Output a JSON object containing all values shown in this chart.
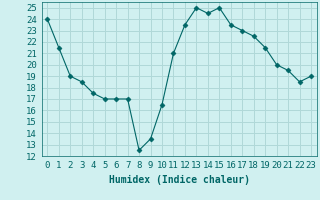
{
  "x": [
    0,
    1,
    2,
    3,
    4,
    5,
    6,
    7,
    8,
    9,
    10,
    11,
    12,
    13,
    14,
    15,
    16,
    17,
    18,
    19,
    20,
    21,
    22,
    23
  ],
  "y": [
    24,
    21.5,
    19,
    18.5,
    17.5,
    17,
    17,
    17,
    12.5,
    13.5,
    16.5,
    21,
    23.5,
    25,
    24.5,
    25,
    23.5,
    23,
    22.5,
    21.5,
    20,
    19.5,
    18.5,
    19
  ],
  "line_color": "#006666",
  "marker": "D",
  "marker_size": 2.5,
  "bg_color": "#d0f0f0",
  "grid_color": "#b0d8d8",
  "xlabel": "Humidex (Indice chaleur)",
  "ylim": [
    12,
    25.5
  ],
  "xlim": [
    -0.5,
    23.5
  ],
  "yticks": [
    12,
    13,
    14,
    15,
    16,
    17,
    18,
    19,
    20,
    21,
    22,
    23,
    24,
    25
  ],
  "xticks": [
    0,
    1,
    2,
    3,
    4,
    5,
    6,
    7,
    8,
    9,
    10,
    11,
    12,
    13,
    14,
    15,
    16,
    17,
    18,
    19,
    20,
    21,
    22,
    23
  ],
  "xtick_labels": [
    "0",
    "1",
    "2",
    "3",
    "4",
    "5",
    "6",
    "7",
    "8",
    "9",
    "10",
    "11",
    "12",
    "13",
    "14",
    "15",
    "16",
    "17",
    "18",
    "19",
    "20",
    "21",
    "22",
    "23"
  ],
  "label_fontsize": 7,
  "tick_fontsize": 6.5
}
